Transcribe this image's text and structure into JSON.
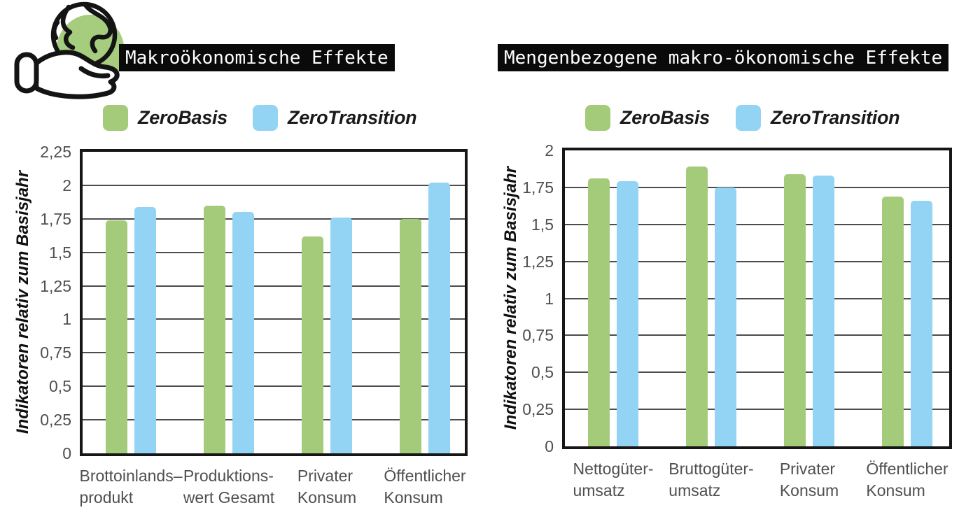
{
  "page": {
    "background": "#ffffff"
  },
  "logo": {
    "icon": "hand-holding-globe-icon",
    "accent_color": "#a6cc7e",
    "line_color": "#141414"
  },
  "chart_data": [
    {
      "type": "bar",
      "title": "Makroökonomische Effekte",
      "ylabel": "Indikatoren relativ zum Basisjahr",
      "xlabel": "",
      "ylim": [
        0,
        2.25
      ],
      "grid": "horizontal",
      "legend_position": "top",
      "yticks": [
        {
          "v": 0,
          "label": "0"
        },
        {
          "v": 0.25,
          "label": "0,25"
        },
        {
          "v": 0.5,
          "label": "0,5"
        },
        {
          "v": 0.75,
          "label": "0,75"
        },
        {
          "v": 1,
          "label": "1"
        },
        {
          "v": 1.25,
          "label": "1,25"
        },
        {
          "v": 1.5,
          "label": "1,5"
        },
        {
          "v": 1.75,
          "label": "1,75"
        },
        {
          "v": 2,
          "label": "2"
        },
        {
          "v": 2.25,
          "label": "2,25"
        }
      ],
      "categories": [
        {
          "lines": [
            "Brottoinlands–",
            "produkt"
          ]
        },
        {
          "lines": [
            "Produktions-",
            "wert Gesamt"
          ]
        },
        {
          "lines": [
            "Privater",
            "Konsum"
          ]
        },
        {
          "lines": [
            "Öffentlicher",
            "Konsum"
          ]
        }
      ],
      "series": [
        {
          "name": "ZeroBasis",
          "color": "#a4cb7a",
          "values": [
            1.74,
            1.85,
            1.62,
            1.75
          ]
        },
        {
          "name": "ZeroTransition",
          "color": "#93d3f4",
          "values": [
            1.84,
            1.8,
            1.76,
            2.02
          ]
        }
      ]
    },
    {
      "type": "bar",
      "title": "Mengenbezogene makro-ökonomische Effekte",
      "ylabel": "Indikatoren relativ zum Basisjahr",
      "xlabel": "",
      "ylim": [
        0,
        2
      ],
      "grid": "horizontal",
      "legend_position": "top",
      "yticks": [
        {
          "v": 0,
          "label": "0"
        },
        {
          "v": 0.25,
          "label": "0,25"
        },
        {
          "v": 0.5,
          "label": "0,5"
        },
        {
          "v": 0.75,
          "label": "0,75"
        },
        {
          "v": 1,
          "label": "1"
        },
        {
          "v": 1.25,
          "label": "1,25"
        },
        {
          "v": 1.5,
          "label": "1,5"
        },
        {
          "v": 1.75,
          "label": "1,75"
        },
        {
          "v": 2,
          "label": "2"
        }
      ],
      "categories": [
        {
          "lines": [
            "Nettogüter-",
            "umsatz"
          ]
        },
        {
          "lines": [
            "Bruttogüter-",
            "umsatz"
          ]
        },
        {
          "lines": [
            "Privater",
            "Konsum"
          ]
        },
        {
          "lines": [
            "Öffentlicher",
            "Konsum"
          ]
        }
      ],
      "series": [
        {
          "name": "ZeroBasis",
          "color": "#a4cb7a",
          "values": [
            1.81,
            1.89,
            1.84,
            1.69
          ]
        },
        {
          "name": "ZeroTransition",
          "color": "#93d3f4",
          "values": [
            1.79,
            1.75,
            1.83,
            1.66
          ]
        }
      ]
    }
  ]
}
